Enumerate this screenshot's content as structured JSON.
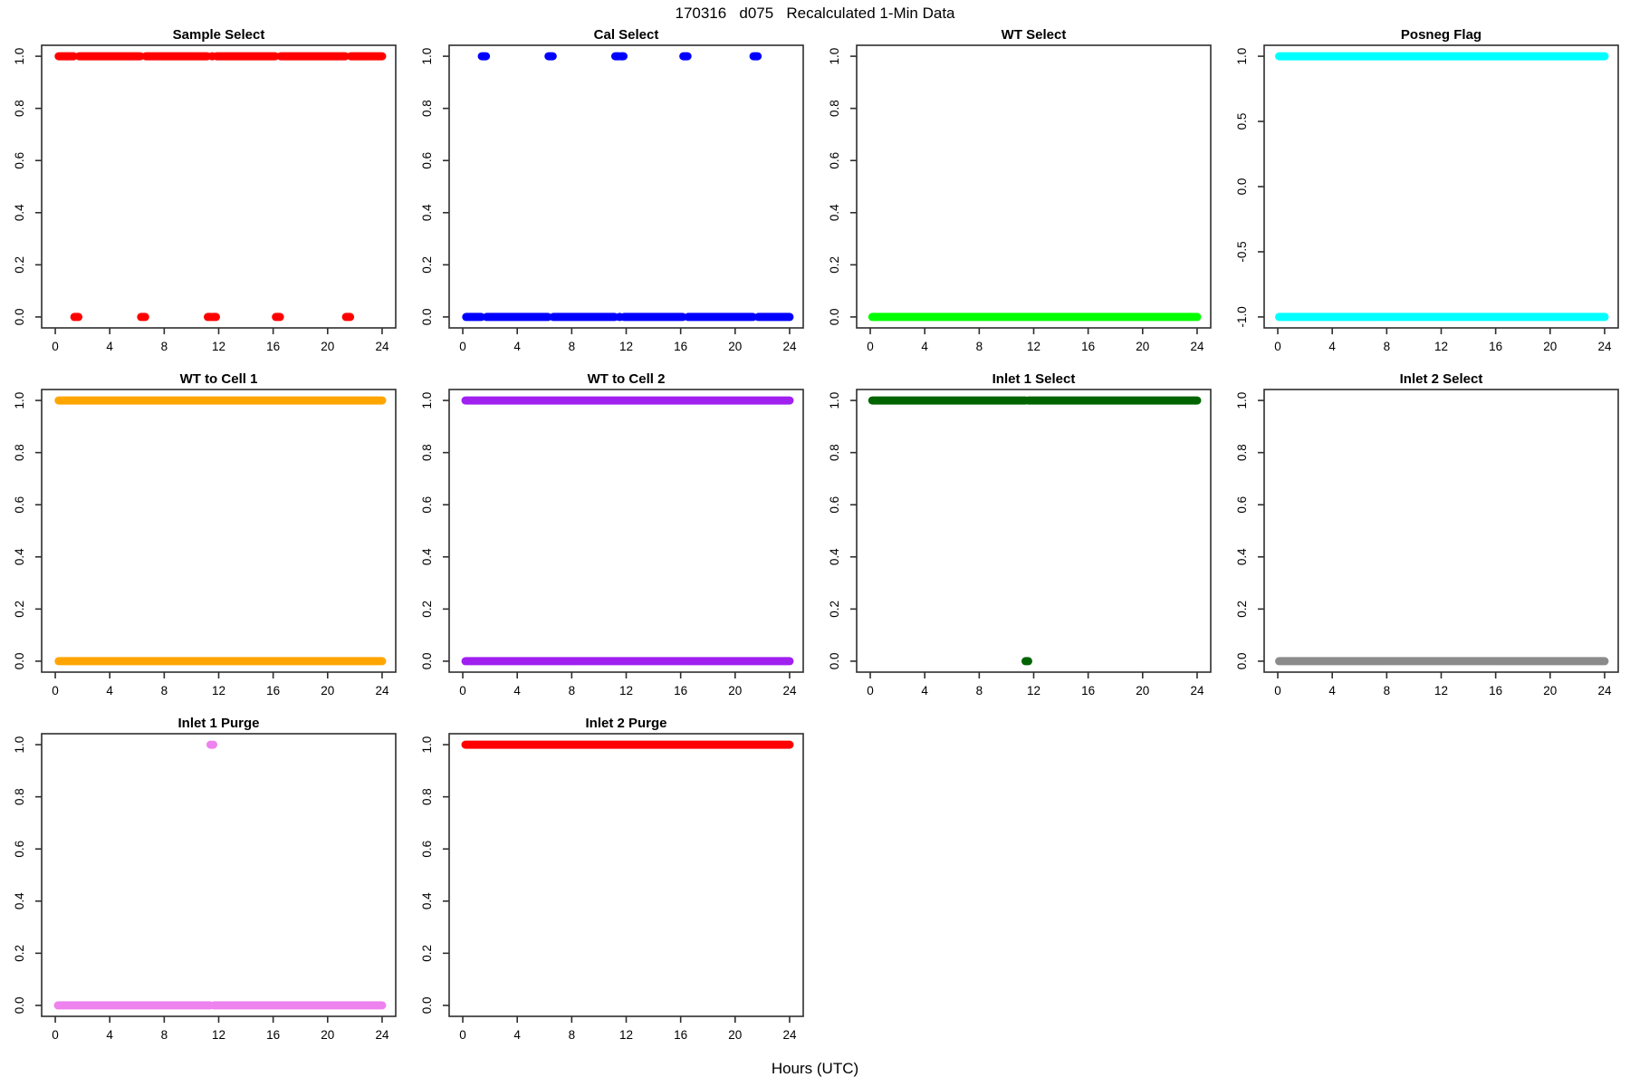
{
  "chart_data": {
    "type": "scatter",
    "figure_title": "170316   d075   Recalculated 1-Min Data",
    "xlabel": "Hours (UTC)",
    "grid": {
      "rows": 3,
      "cols": 4
    },
    "xlim": [
      -1,
      25
    ],
    "x_ticks": [
      0,
      4,
      8,
      12,
      16,
      20,
      24
    ],
    "plots": [
      {
        "title": "Sample Select",
        "color": "#FF0000",
        "ylim": [
          -0.042,
          1.042
        ],
        "yticks": {
          "values": [
            0,
            0.2,
            0.4,
            0.6,
            0.8,
            1.0
          ],
          "labels": [
            "0.0",
            "0.2",
            "0.4",
            "0.6",
            "0.8",
            "1.0"
          ]
        },
        "segments": [
          {
            "y": 1,
            "x0": 0.25,
            "x1": 1.35
          },
          {
            "y": 1,
            "x0": 1.75,
            "x1": 6.25
          },
          {
            "y": 1,
            "x0": 6.65,
            "x1": 11.15
          },
          {
            "y": 1,
            "x0": 11.5,
            "x1": 11.55
          },
          {
            "y": 1,
            "x0": 11.85,
            "x1": 16.15
          },
          {
            "y": 1,
            "x0": 16.55,
            "x1": 21.3
          },
          {
            "y": 1,
            "x0": 21.7,
            "x1": 24.0
          },
          {
            "y": 0,
            "x0": 1.4,
            "x1": 1.7
          },
          {
            "y": 0,
            "x0": 6.3,
            "x1": 6.6
          },
          {
            "y": 0,
            "x0": 11.2,
            "x1": 11.45
          },
          {
            "y": 0,
            "x0": 11.6,
            "x1": 11.8
          },
          {
            "y": 0,
            "x0": 16.2,
            "x1": 16.5
          },
          {
            "y": 0,
            "x0": 21.35,
            "x1": 21.65
          }
        ]
      },
      {
        "title": "Cal Select",
        "color": "#0000FF",
        "ylim": [
          -0.042,
          1.042
        ],
        "yticks": {
          "values": [
            0,
            0.2,
            0.4,
            0.6,
            0.8,
            1.0
          ],
          "labels": [
            "0.0",
            "0.2",
            "0.4",
            "0.6",
            "0.8",
            "1.0"
          ]
        },
        "segments": [
          {
            "y": 1,
            "x0": 1.4,
            "x1": 1.7
          },
          {
            "y": 1,
            "x0": 6.3,
            "x1": 6.6
          },
          {
            "y": 1,
            "x0": 11.2,
            "x1": 11.45
          },
          {
            "y": 1,
            "x0": 11.6,
            "x1": 11.8
          },
          {
            "y": 1,
            "x0": 16.2,
            "x1": 16.5
          },
          {
            "y": 1,
            "x0": 21.35,
            "x1": 21.65
          },
          {
            "y": 0,
            "x0": 0.25,
            "x1": 1.35
          },
          {
            "y": 0,
            "x0": 1.75,
            "x1": 6.25
          },
          {
            "y": 0,
            "x0": 6.65,
            "x1": 11.15
          },
          {
            "y": 0,
            "x0": 11.5,
            "x1": 11.55
          },
          {
            "y": 0,
            "x0": 11.85,
            "x1": 16.15
          },
          {
            "y": 0,
            "x0": 16.55,
            "x1": 21.3
          },
          {
            "y": 0,
            "x0": 21.7,
            "x1": 24.0
          }
        ]
      },
      {
        "title": "WT Select",
        "color": "#00FF00",
        "ylim": [
          -0.042,
          1.042
        ],
        "yticks": {
          "values": [
            0,
            0.2,
            0.4,
            0.6,
            0.8,
            1.0
          ],
          "labels": [
            "0.0",
            "0.2",
            "0.4",
            "0.6",
            "0.8",
            "1.0"
          ]
        },
        "segments": [
          {
            "y": 0,
            "x0": 0.15,
            "x1": 24.0
          }
        ]
      },
      {
        "title": "Posneg Flag",
        "color": "#00FFFF",
        "ylim": [
          -1.084,
          1.084
        ],
        "yticks": {
          "values": [
            -1.0,
            -0.5,
            0,
            0.5,
            1.0
          ],
          "labels": [
            "-1.0",
            "-0.5",
            "0.0",
            "0.5",
            "1.0"
          ]
        },
        "segments": [
          {
            "y": 1,
            "x0": 0.1,
            "x1": 24.0
          },
          {
            "y": -1,
            "x0": 0.1,
            "x1": 24.0
          }
        ]
      },
      {
        "title": "WT to Cell 1",
        "color": "#FFA500",
        "ylim": [
          -0.042,
          1.042
        ],
        "yticks": {
          "values": [
            0,
            0.2,
            0.4,
            0.6,
            0.8,
            1.0
          ],
          "labels": [
            "0.0",
            "0.2",
            "0.4",
            "0.6",
            "0.8",
            "1.0"
          ]
        },
        "segments": [
          {
            "y": 1,
            "x0": 0.25,
            "x1": 24.0
          },
          {
            "y": 0,
            "x0": 0.25,
            "x1": 24.0
          }
        ]
      },
      {
        "title": "WT to Cell 2",
        "color": "#A020F0",
        "ylim": [
          -0.042,
          1.042
        ],
        "yticks": {
          "values": [
            0,
            0.2,
            0.4,
            0.6,
            0.8,
            1.0
          ],
          "labels": [
            "0.0",
            "0.2",
            "0.4",
            "0.6",
            "0.8",
            "1.0"
          ]
        },
        "segments": [
          {
            "y": 1,
            "x0": 0.2,
            "x1": 24.0
          },
          {
            "y": 0,
            "x0": 0.2,
            "x1": 24.0
          }
        ]
      },
      {
        "title": "Inlet 1 Select",
        "color": "#006400",
        "ylim": [
          -0.042,
          1.042
        ],
        "yticks": {
          "values": [
            0,
            0.2,
            0.4,
            0.6,
            0.8,
            1.0
          ],
          "labels": [
            "0.0",
            "0.2",
            "0.4",
            "0.6",
            "0.8",
            "1.0"
          ]
        },
        "segments": [
          {
            "y": 1,
            "x0": 0.15,
            "x1": 11.4
          },
          {
            "y": 1,
            "x0": 11.6,
            "x1": 24.0
          },
          {
            "y": 0,
            "x0": 11.4,
            "x1": 11.6
          }
        ]
      },
      {
        "title": "Inlet 2 Select",
        "color": "#8B8B8B",
        "ylim": [
          -0.042,
          1.042
        ],
        "yticks": {
          "values": [
            0,
            0.2,
            0.4,
            0.6,
            0.8,
            1.0
          ],
          "labels": [
            "0.0",
            "0.2",
            "0.4",
            "0.6",
            "0.8",
            "1.0"
          ]
        },
        "segments": [
          {
            "y": 0,
            "x0": 0.1,
            "x1": 24.0
          }
        ]
      },
      {
        "title": "Inlet 1 Purge",
        "color": "#EE82EE",
        "ylim": [
          -0.042,
          1.042
        ],
        "yticks": {
          "values": [
            0,
            0.2,
            0.4,
            0.6,
            0.8,
            1.0
          ],
          "labels": [
            "0.0",
            "0.2",
            "0.4",
            "0.6",
            "0.8",
            "1.0"
          ]
        },
        "segments": [
          {
            "y": 1,
            "x0": 11.4,
            "x1": 11.6
          },
          {
            "y": 0,
            "x0": 0.2,
            "x1": 11.35
          },
          {
            "y": 0,
            "x0": 11.65,
            "x1": 24.0
          }
        ]
      },
      {
        "title": "Inlet 2 Purge",
        "color": "#FF0000",
        "ylim": [
          -0.042,
          1.042
        ],
        "yticks": {
          "values": [
            0,
            0.2,
            0.4,
            0.6,
            0.8,
            1.0
          ],
          "labels": [
            "0.0",
            "0.2",
            "0.4",
            "0.6",
            "0.8",
            "1.0"
          ]
        },
        "segments": [
          {
            "y": 1,
            "x0": 0.2,
            "x1": 24.0
          }
        ]
      }
    ]
  }
}
